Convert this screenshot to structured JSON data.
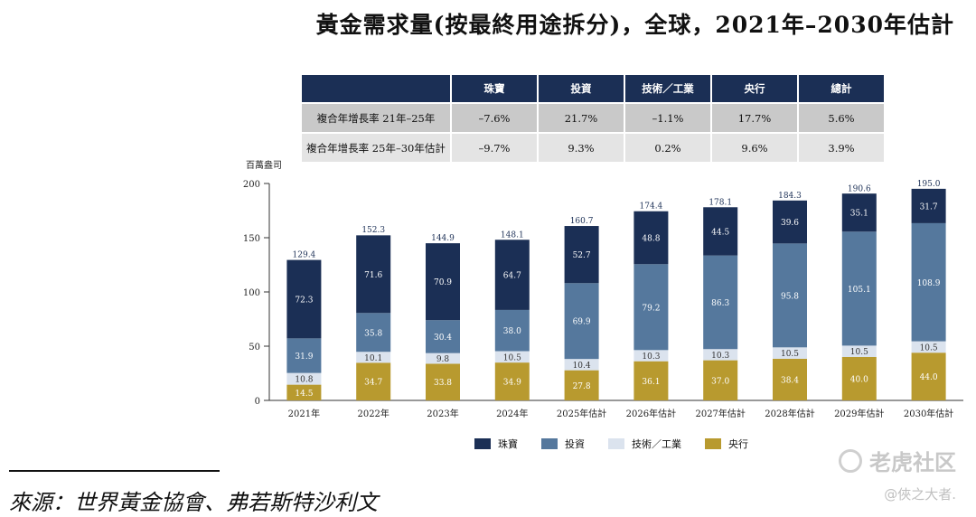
{
  "title": "黃金需求量(按最終用途拆分)，全球，2021年–2030年估計",
  "table": {
    "headers": [
      "珠寶",
      "投資",
      "技術／工業",
      "央行",
      "總計"
    ],
    "rows": [
      {
        "label": "複合年增長率 21年–25年",
        "values": [
          "–7.6%",
          "21.7%",
          "–1.1%",
          "17.7%",
          "5.6%"
        ]
      },
      {
        "label": "複合年增長率 25年–30年估計",
        "values": [
          "–9.7%",
          "9.3%",
          "0.2%",
          "9.6%",
          "3.9%"
        ]
      }
    ]
  },
  "chart_data": {
    "type": "bar",
    "stacked": true,
    "unit_label": "百萬盎司",
    "categories": [
      "2021年",
      "2022年",
      "2023年",
      "2024年",
      "2025年估計",
      "2026年估計",
      "2027年估計",
      "2028年估計",
      "2029年估計",
      "2030年估計"
    ],
    "series": [
      {
        "name": "央行",
        "color": "#b89a2f",
        "values": [
          14.5,
          34.7,
          33.8,
          34.9,
          27.8,
          36.1,
          37.0,
          38.4,
          40.0,
          44.0
        ]
      },
      {
        "name": "技術／工業",
        "color": "#dbe3ee",
        "values": [
          10.8,
          10.1,
          9.8,
          10.5,
          10.4,
          10.3,
          10.3,
          10.5,
          10.5,
          10.5
        ]
      },
      {
        "name": "投資",
        "color": "#55789d",
        "values": [
          31.9,
          35.8,
          30.4,
          38.0,
          69.9,
          79.2,
          86.3,
          95.8,
          105.1,
          108.9
        ]
      },
      {
        "name": "珠寶",
        "color": "#1b2f55",
        "values": [
          72.3,
          71.6,
          70.9,
          64.7,
          52.7,
          48.8,
          44.5,
          39.6,
          35.1,
          31.7
        ]
      }
    ],
    "totals": [
      129.4,
      152.3,
      144.9,
      148.1,
      160.7,
      174.4,
      178.1,
      184.3,
      190.6,
      195.0
    ],
    "ylim": [
      0,
      200
    ],
    "yticks": [
      0,
      50,
      100,
      150,
      200
    ],
    "legend_order": [
      "珠寶",
      "投資",
      "技術／工業",
      "央行"
    ],
    "legend_position": "bottom"
  },
  "source": "來源：世界黃金協會、弗若斯特沙利文",
  "watermark": {
    "brand": "老虎社区",
    "author": "@俠之大者."
  }
}
